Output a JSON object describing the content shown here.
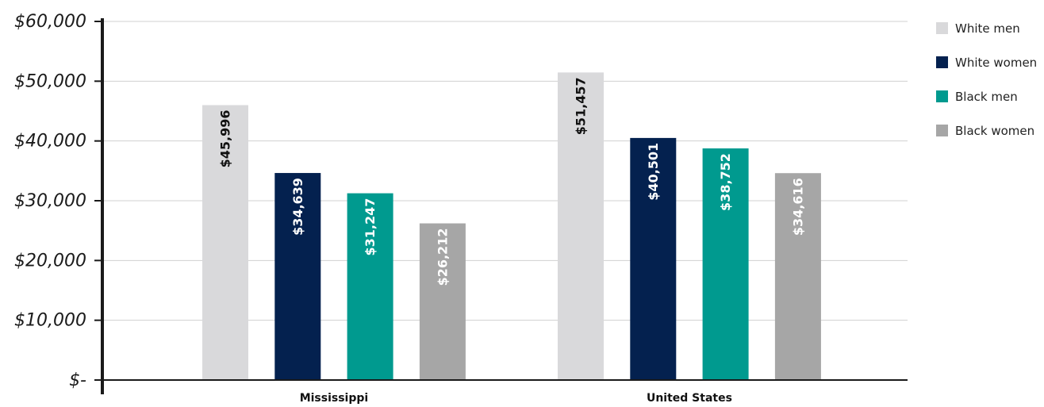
{
  "chart_data": {
    "type": "bar",
    "categories": [
      "Mississippi",
      "United States"
    ],
    "series": [
      {
        "name": "White men",
        "color": "#d9d9db",
        "label_color": "#111111",
        "values": [
          45996,
          51457
        ],
        "labels": [
          "$45,996",
          "$51,457"
        ]
      },
      {
        "name": "White women",
        "color": "#04214f",
        "label_color": "#ffffff",
        "values": [
          34639,
          40501
        ],
        "labels": [
          "$34,639",
          "$40,501"
        ]
      },
      {
        "name": "Black men",
        "color": "#009a8f",
        "label_color": "#ffffff",
        "values": [
          31247,
          38752
        ],
        "labels": [
          "$31,247",
          "$38,752"
        ]
      },
      {
        "name": "Black women",
        "color": "#a6a6a6",
        "label_color": "#ffffff",
        "values": [
          26212,
          34616
        ],
        "labels": [
          "$26,212",
          "$34,616"
        ]
      }
    ],
    "ylim": [
      0,
      60000
    ],
    "yticks": [
      0,
      10000,
      20000,
      30000,
      40000,
      50000,
      60000
    ],
    "ytick_labels": [
      "$-",
      "$10,000",
      "$20,000",
      "$30,000",
      "$40,000",
      "$50,000",
      "$60,000"
    ],
    "grid": true,
    "legend_position": "top-right",
    "title": "",
    "xlabel": "",
    "ylabel": ""
  }
}
